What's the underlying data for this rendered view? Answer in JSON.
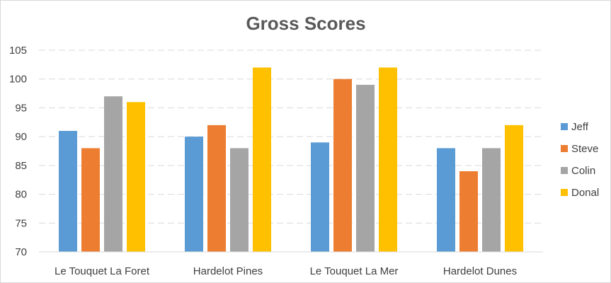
{
  "chart_data": {
    "type": "bar",
    "title": "Gross Scores",
    "xlabel": "",
    "ylabel": "",
    "categories": [
      "Le Touquet La Foret",
      "Hardelot Pines",
      "Le Touquet La Mer",
      "Hardelot Dunes"
    ],
    "series": [
      {
        "name": "Jeff",
        "color": "#5b9bd5",
        "values": [
          91,
          90,
          89,
          88
        ]
      },
      {
        "name": "Steve",
        "color": "#ed7d31",
        "values": [
          88,
          92,
          100,
          84
        ]
      },
      {
        "name": "Colin",
        "color": "#a5a5a5",
        "values": [
          97,
          88,
          99,
          88
        ]
      },
      {
        "name": "Donal",
        "color": "#ffc000",
        "values": [
          96,
          102,
          102,
          92
        ]
      }
    ],
    "ylim": [
      70,
      105
    ],
    "yticks": [
      "70",
      "75",
      "80",
      "85",
      "90",
      "95",
      "100",
      "105"
    ],
    "grid": true,
    "legend_position": "right"
  }
}
